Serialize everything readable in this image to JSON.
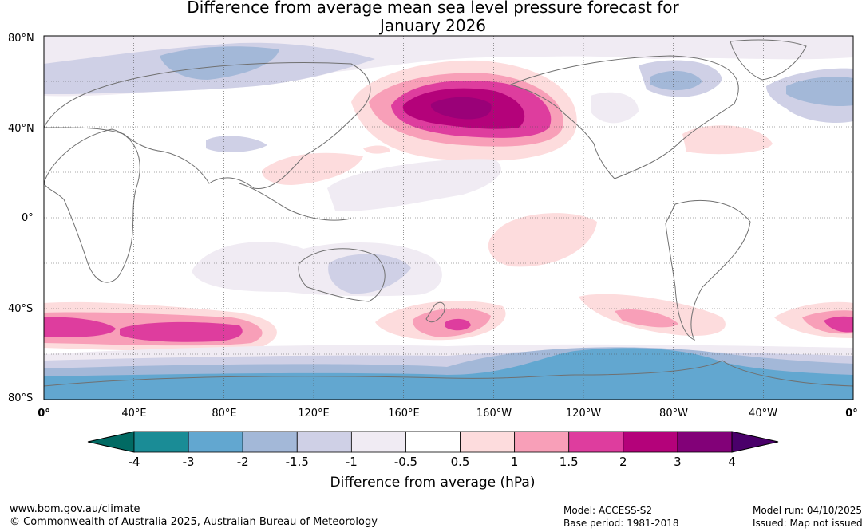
{
  "title_line1": "Difference from average mean sea level pressure forecast for",
  "title_line2": "January 2026",
  "axes": {
    "lat_labels": [
      "80°N",
      "40°N",
      "0°",
      "40°S",
      "80°S"
    ],
    "lon_labels": [
      "0°",
      "40°E",
      "80°E",
      "120°E",
      "160°E",
      "160°W",
      "120°W",
      "80°W",
      "40°W",
      "0°"
    ]
  },
  "colorbar": {
    "unit_label": "Difference from average (hPa)",
    "ticks": [
      "-4",
      "-3",
      "-2",
      "-1.5",
      "-1",
      "-0.5",
      "0.5",
      "1",
      "1.5",
      "2",
      "3",
      "4"
    ],
    "colors": [
      "#1a8c96",
      "#62a7d0",
      "#a3b8d8",
      "#cfd0e6",
      "#f0ebf3",
      "#ffffff",
      "#fddcdd",
      "#f89fb8",
      "#de3d9e",
      "#b4027a",
      "#820178"
    ],
    "under_color": "#016a63",
    "over_color": "#4a006a"
  },
  "footer": {
    "website": "www.bom.gov.au/climate",
    "copyright": "© Commonwealth of Australia 2025, Australian Bureau of Meteorology",
    "model": "Model: ACCESS-S2",
    "base_period": "Base period: 1981-2018",
    "model_run": "Model run: 04/10/2025",
    "issued": "Issued: Map not issued"
  }
}
